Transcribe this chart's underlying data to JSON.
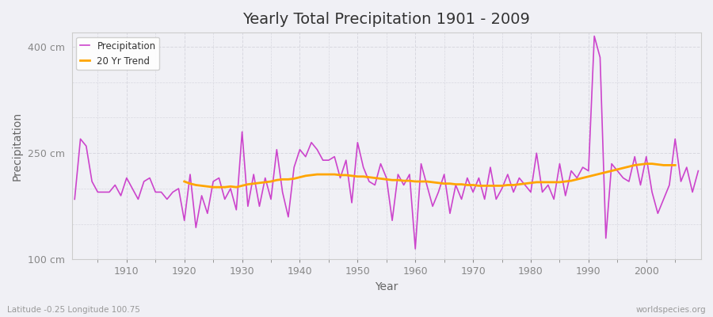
{
  "title": "Yearly Total Precipitation 1901 - 2009",
  "xlabel": "Year",
  "ylabel": "Precipitation",
  "subtitle_left": "Latitude -0.25 Longitude 100.75",
  "subtitle_right": "worldspecies.org",
  "ylim": [
    100,
    420
  ],
  "yticks": [
    100,
    250,
    400
  ],
  "ytick_labels": [
    "100 cm",
    "250 cm",
    "400 cm"
  ],
  "background_color": "#f0f0f5",
  "plot_bg_color": "#f0f0f5",
  "grid_color": "#d8d8e0",
  "precip_color": "#cc44cc",
  "trend_color": "#ffa500",
  "legend_labels": [
    "Precipitation",
    "20 Yr Trend"
  ],
  "years": [
    1901,
    1902,
    1903,
    1904,
    1905,
    1906,
    1907,
    1908,
    1909,
    1910,
    1911,
    1912,
    1913,
    1914,
    1915,
    1916,
    1917,
    1918,
    1919,
    1920,
    1921,
    1922,
    1923,
    1924,
    1925,
    1926,
    1927,
    1928,
    1929,
    1930,
    1931,
    1932,
    1933,
    1934,
    1935,
    1936,
    1937,
    1938,
    1939,
    1940,
    1941,
    1942,
    1943,
    1944,
    1945,
    1946,
    1947,
    1948,
    1949,
    1950,
    1951,
    1952,
    1953,
    1954,
    1955,
    1956,
    1957,
    1958,
    1959,
    1960,
    1961,
    1962,
    1963,
    1964,
    1965,
    1966,
    1967,
    1968,
    1969,
    1970,
    1971,
    1972,
    1973,
    1974,
    1975,
    1976,
    1977,
    1978,
    1979,
    1980,
    1981,
    1982,
    1983,
    1984,
    1985,
    1986,
    1987,
    1988,
    1989,
    1990,
    1991,
    1992,
    1993,
    1994,
    1995,
    1996,
    1997,
    1998,
    1999,
    2000,
    2001,
    2002,
    2003,
    2004,
    2005,
    2006,
    2007,
    2008,
    2009
  ],
  "precip": [
    185,
    270,
    260,
    210,
    195,
    195,
    195,
    205,
    190,
    215,
    200,
    185,
    210,
    215,
    195,
    195,
    185,
    195,
    200,
    155,
    220,
    145,
    190,
    165,
    210,
    215,
    185,
    200,
    170,
    280,
    175,
    220,
    175,
    215,
    185,
    255,
    195,
    160,
    230,
    255,
    245,
    265,
    255,
    240,
    240,
    245,
    215,
    240,
    180,
    265,
    230,
    210,
    205,
    235,
    215,
    155,
    220,
    205,
    220,
    115,
    235,
    205,
    175,
    195,
    220,
    165,
    205,
    185,
    215,
    195,
    215,
    185,
    230,
    185,
    200,
    220,
    195,
    215,
    205,
    195,
    250,
    195,
    205,
    185,
    235,
    190,
    225,
    215,
    230,
    225,
    415,
    385,
    130,
    235,
    225,
    215,
    210,
    245,
    205,
    245,
    195,
    165,
    185,
    205,
    270,
    210,
    230,
    195,
    225
  ],
  "trend": [
    null,
    null,
    null,
    null,
    null,
    null,
    null,
    null,
    null,
    null,
    null,
    null,
    null,
    null,
    null,
    null,
    null,
    null,
    null,
    210,
    207,
    205,
    204,
    203,
    202,
    202,
    202,
    203,
    202,
    204,
    206,
    207,
    208,
    209,
    210,
    212,
    213,
    213,
    214,
    216,
    218,
    219,
    220,
    220,
    220,
    220,
    219,
    219,
    218,
    217,
    217,
    216,
    215,
    214,
    213,
    212,
    212,
    211,
    211,
    210,
    210,
    210,
    209,
    208,
    207,
    207,
    206,
    206,
    205,
    205,
    204,
    204,
    204,
    204,
    204,
    205,
    205,
    206,
    207,
    208,
    209,
    209,
    209,
    209,
    209,
    210,
    211,
    213,
    215,
    217,
    219,
    221,
    223,
    225,
    227,
    229,
    231,
    233,
    234,
    235,
    235,
    234,
    233,
    233,
    233
  ]
}
